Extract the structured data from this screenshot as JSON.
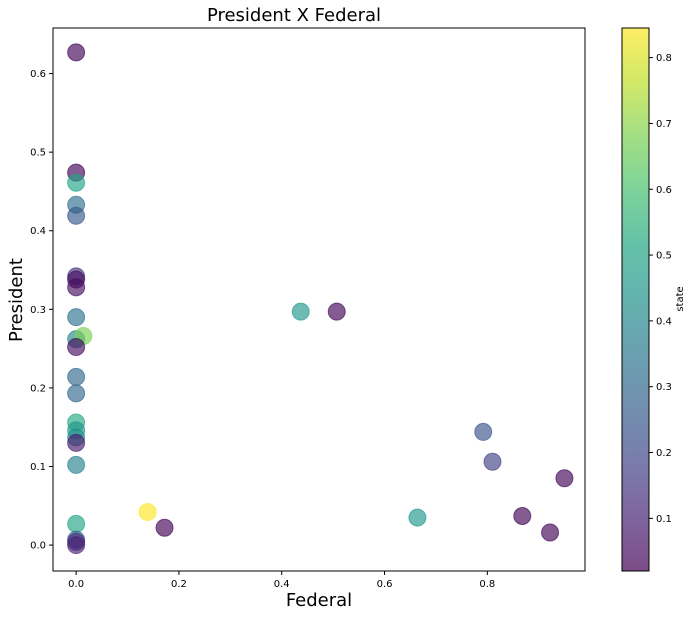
{
  "chart_data": {
    "type": "scatter",
    "title": "President X Federal",
    "xlabel": "Federal",
    "ylabel": "President",
    "xlim": [
      -0.045,
      0.99
    ],
    "ylim": [
      -0.033,
      0.658
    ],
    "xticks": [
      "0.0",
      "0.2",
      "0.4",
      "0.6",
      "0.8"
    ],
    "xtick_values": [
      0.0,
      0.2,
      0.4,
      0.6,
      0.8
    ],
    "yticks": [
      "0.0",
      "0.1",
      "0.2",
      "0.3",
      "0.4",
      "0.5",
      "0.6"
    ],
    "ytick_values": [
      0.0,
      0.1,
      0.2,
      0.3,
      0.4,
      0.5,
      0.6
    ],
    "grid": false,
    "colorbar": {
      "label": "state",
      "colormap": "viridis",
      "range": [
        0.02,
        0.845
      ],
      "ticks": [
        "0.1",
        "0.2",
        "0.3",
        "0.4",
        "0.5",
        "0.6",
        "0.7",
        "0.8"
      ],
      "tick_values": [
        0.1,
        0.2,
        0.3,
        0.4,
        0.5,
        0.6,
        0.7,
        0.8
      ]
    },
    "marker_alpha": 0.65,
    "points": [
      {
        "x": 0.0,
        "y": 0.627,
        "c": 0.03
      },
      {
        "x": 0.0,
        "y": 0.474,
        "c": 0.03
      },
      {
        "x": 0.0,
        "y": 0.461,
        "c": 0.5
      },
      {
        "x": 0.0,
        "y": 0.433,
        "c": 0.32
      },
      {
        "x": 0.0,
        "y": 0.419,
        "c": 0.25
      },
      {
        "x": 0.0,
        "y": 0.342,
        "c": 0.15
      },
      {
        "x": 0.0,
        "y": 0.338,
        "c": 0.05
      },
      {
        "x": 0.0,
        "y": 0.328,
        "c": 0.05
      },
      {
        "x": 0.0,
        "y": 0.29,
        "c": 0.33
      },
      {
        "x": 0.0,
        "y": 0.262,
        "c": 0.4
      },
      {
        "x": 0.014,
        "y": 0.266,
        "c": 0.68
      },
      {
        "x": 0.0,
        "y": 0.252,
        "c": 0.05
      },
      {
        "x": 0.0,
        "y": 0.214,
        "c": 0.3
      },
      {
        "x": 0.0,
        "y": 0.193,
        "c": 0.3
      },
      {
        "x": 0.0,
        "y": 0.156,
        "c": 0.52
      },
      {
        "x": 0.0,
        "y": 0.146,
        "c": 0.45
      },
      {
        "x": 0.0,
        "y": 0.137,
        "c": 0.42
      },
      {
        "x": 0.0,
        "y": 0.13,
        "c": 0.08
      },
      {
        "x": 0.0,
        "y": 0.102,
        "c": 0.38
      },
      {
        "x": 0.0,
        "y": 0.027,
        "c": 0.5
      },
      {
        "x": 0.0,
        "y": 0.007,
        "c": 0.28
      },
      {
        "x": 0.0,
        "y": 0.004,
        "c": 0.12
      },
      {
        "x": 0.0,
        "y": 0.0,
        "c": 0.1
      },
      {
        "x": 0.139,
        "y": 0.042,
        "c": 0.845
      },
      {
        "x": 0.172,
        "y": 0.022,
        "c": 0.03
      },
      {
        "x": 0.437,
        "y": 0.297,
        "c": 0.45
      },
      {
        "x": 0.507,
        "y": 0.297,
        "c": 0.03
      },
      {
        "x": 0.664,
        "y": 0.035,
        "c": 0.45
      },
      {
        "x": 0.792,
        "y": 0.144,
        "c": 0.23
      },
      {
        "x": 0.81,
        "y": 0.106,
        "c": 0.18
      },
      {
        "x": 0.868,
        "y": 0.037,
        "c": 0.03
      },
      {
        "x": 0.922,
        "y": 0.016,
        "c": 0.03
      },
      {
        "x": 0.95,
        "y": 0.085,
        "c": 0.03
      }
    ]
  }
}
